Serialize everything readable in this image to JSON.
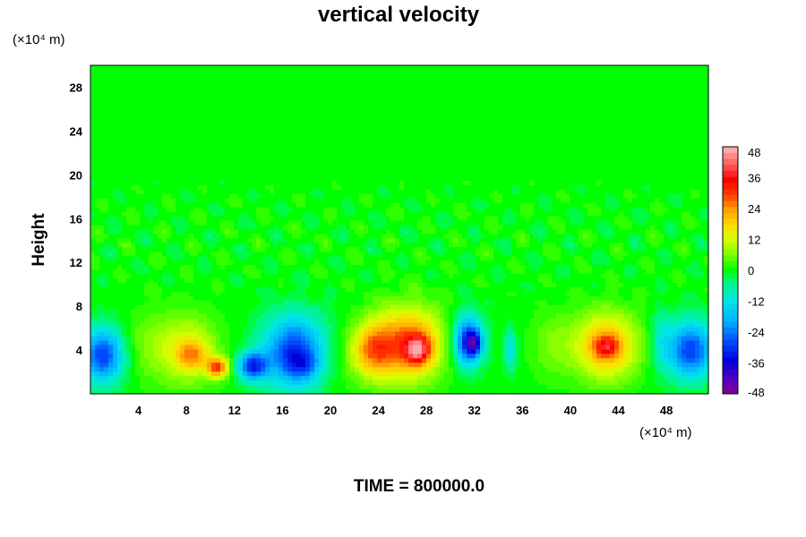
{
  "chart_data": {
    "type": "heatmap",
    "title": "vertical velocity",
    "ylabel": "Height",
    "x_unit_label": "(×10⁴ m)",
    "y_unit_label": "(×10⁴ m)",
    "xlim": [
      0,
      51.5
    ],
    "ylim": [
      0,
      30
    ],
    "x_ticks": [
      4,
      8,
      12,
      16,
      20,
      24,
      28,
      32,
      36,
      40,
      44,
      48
    ],
    "y_ticks": [
      4,
      8,
      12,
      16,
      20,
      24,
      28
    ],
    "colorbar": {
      "range": [
        -48,
        48
      ],
      "ticks": [
        48,
        36,
        24,
        12,
        0,
        -12,
        -24,
        -36,
        -48
      ],
      "levels": 41
    },
    "features": [
      {
        "x": 1.0,
        "y": 3.5,
        "value": -30,
        "sx": 1.8,
        "sy": 2.5
      },
      {
        "x": 4.5,
        "y": 4.5,
        "value": 5,
        "sx": 2.0,
        "sy": 3.0
      },
      {
        "x": 8.0,
        "y": 4.0,
        "value": 14,
        "sx": 2.6,
        "sy": 3.2
      },
      {
        "x": 8.5,
        "y": 3.5,
        "value": 14,
        "sx": 1.3,
        "sy": 1.3
      },
      {
        "x": 10.6,
        "y": 2.4,
        "value": 28,
        "sx": 0.9,
        "sy": 0.9
      },
      {
        "x": 13.5,
        "y": 2.5,
        "value": -30,
        "sx": 1.2,
        "sy": 1.3
      },
      {
        "x": 17.0,
        "y": 3.8,
        "value": -32,
        "sx": 2.6,
        "sy": 3.2
      },
      {
        "x": 17.8,
        "y": 2.6,
        "value": -10,
        "sx": 1.3,
        "sy": 1.2
      },
      {
        "x": 23.5,
        "y": 4.0,
        "value": 22,
        "sx": 1.8,
        "sy": 2.5
      },
      {
        "x": 26.5,
        "y": 4.6,
        "value": 28,
        "sx": 2.8,
        "sy": 3.3
      },
      {
        "x": 27.3,
        "y": 4.0,
        "value": 26,
        "sx": 1.0,
        "sy": 1.3
      },
      {
        "x": 31.5,
        "y": 4.8,
        "value": -35,
        "sx": 1.2,
        "sy": 2.2
      },
      {
        "x": 32.0,
        "y": 4.6,
        "value": -18,
        "sx": 0.6,
        "sy": 1.0
      },
      {
        "x": 35.0,
        "y": 4.0,
        "value": -14,
        "sx": 0.5,
        "sy": 1.8
      },
      {
        "x": 38.5,
        "y": 4.5,
        "value": 6,
        "sx": 1.8,
        "sy": 3.0
      },
      {
        "x": 43.0,
        "y": 4.4,
        "value": 24,
        "sx": 2.6,
        "sy": 3.0
      },
      {
        "x": 43.0,
        "y": 4.3,
        "value": 16,
        "sx": 1.0,
        "sy": 1.0
      },
      {
        "x": 50.0,
        "y": 4.0,
        "value": -30,
        "sx": 2.0,
        "sy": 2.6
      },
      {
        "x": 20.0,
        "y": 3.0,
        "value": 3,
        "sx": 2.0,
        "sy": 2.5
      },
      {
        "x": 47.5,
        "y": 5.0,
        "value": -8,
        "sx": 0.8,
        "sy": 2.5
      }
    ],
    "background_value": 0
  },
  "footer": {
    "time_label": "TIME = 800000.0"
  }
}
